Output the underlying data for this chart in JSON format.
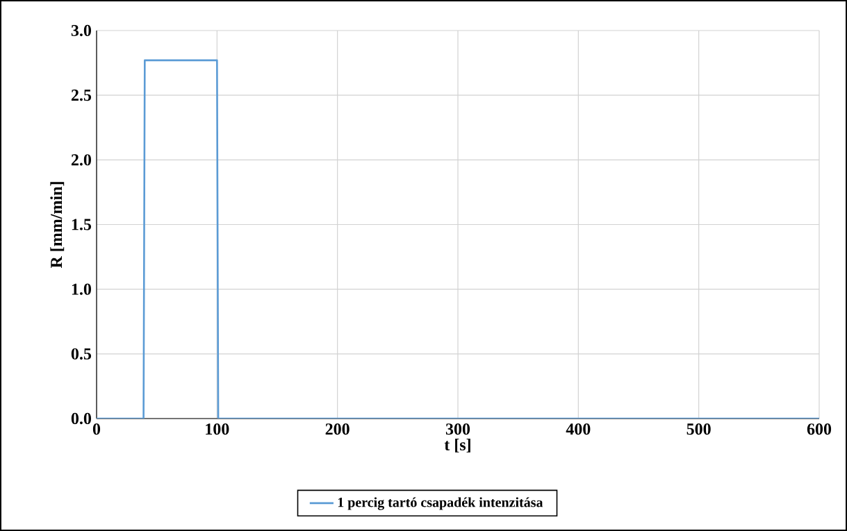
{
  "chart_data": {
    "type": "line",
    "xlabel": "t [s]",
    "ylabel": "R [mm/min]",
    "x": [
      0,
      39,
      40,
      100,
      101,
      600
    ],
    "series": [
      {
        "name": "1 percig tartó csapadék intenzitása",
        "color": "#5b9bd5",
        "values": [
          0,
          0,
          2.77,
          2.77,
          0,
          0
        ]
      }
    ],
    "xlim": [
      0,
      600
    ],
    "ylim": [
      0,
      3
    ],
    "xticks": [
      0,
      100,
      200,
      300,
      400,
      500,
      600
    ],
    "yticks": [
      {
        "value": 0,
        "label": "0.0"
      },
      {
        "value": 0.5,
        "label": "0.5"
      },
      {
        "value": 1,
        "label": "1.0"
      },
      {
        "value": 1.5,
        "label": "1.5"
      },
      {
        "value": 2,
        "label": "2.0"
      },
      {
        "value": 2.5,
        "label": "2.5"
      },
      {
        "value": 3,
        "label": "3.0"
      }
    ],
    "grid": true,
    "legend": "bottom",
    "marker": "none",
    "line_style": "solid"
  }
}
